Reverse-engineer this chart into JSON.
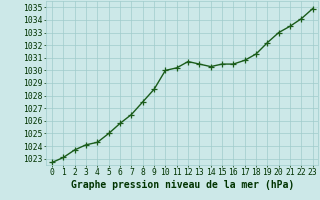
{
  "x": [
    0,
    1,
    2,
    3,
    4,
    5,
    6,
    7,
    8,
    9,
    10,
    11,
    12,
    13,
    14,
    15,
    16,
    17,
    18,
    19,
    20,
    21,
    22,
    23
  ],
  "y": [
    1022.7,
    1023.1,
    1023.7,
    1024.1,
    1024.3,
    1025.0,
    1025.8,
    1026.5,
    1027.5,
    1028.5,
    1030.0,
    1030.2,
    1030.7,
    1030.5,
    1030.3,
    1030.5,
    1030.5,
    1030.8,
    1031.3,
    1032.2,
    1033.0,
    1033.5,
    1034.1,
    1034.9
  ],
  "xlabel": "Graphe pression niveau de la mer (hPa)",
  "ylim": [
    1022.5,
    1035.5
  ],
  "xlim": [
    -0.5,
    23.5
  ],
  "yticks": [
    1023,
    1024,
    1025,
    1026,
    1027,
    1028,
    1029,
    1030,
    1031,
    1032,
    1033,
    1034,
    1035
  ],
  "xticks": [
    0,
    1,
    2,
    3,
    4,
    5,
    6,
    7,
    8,
    9,
    10,
    11,
    12,
    13,
    14,
    15,
    16,
    17,
    18,
    19,
    20,
    21,
    22,
    23
  ],
  "xtick_labels": [
    "0",
    "1",
    "2",
    "3",
    "4",
    "5",
    "6",
    "7",
    "8",
    "9",
    "10",
    "11",
    "12",
    "13",
    "14",
    "15",
    "16",
    "17",
    "18",
    "19",
    "20",
    "21",
    "22",
    "23"
  ],
  "line_color": "#1a5c1a",
  "marker": "+",
  "marker_color": "#1a5c1a",
  "bg_color": "#cce8e8",
  "grid_color": "#a0cccc",
  "xlabel_color": "#003300",
  "tick_color": "#003300",
  "xlabel_fontsize": 7.0,
  "tick_fontsize": 5.8,
  "line_width": 1.0,
  "marker_size": 4,
  "marker_edge_width": 0.9
}
